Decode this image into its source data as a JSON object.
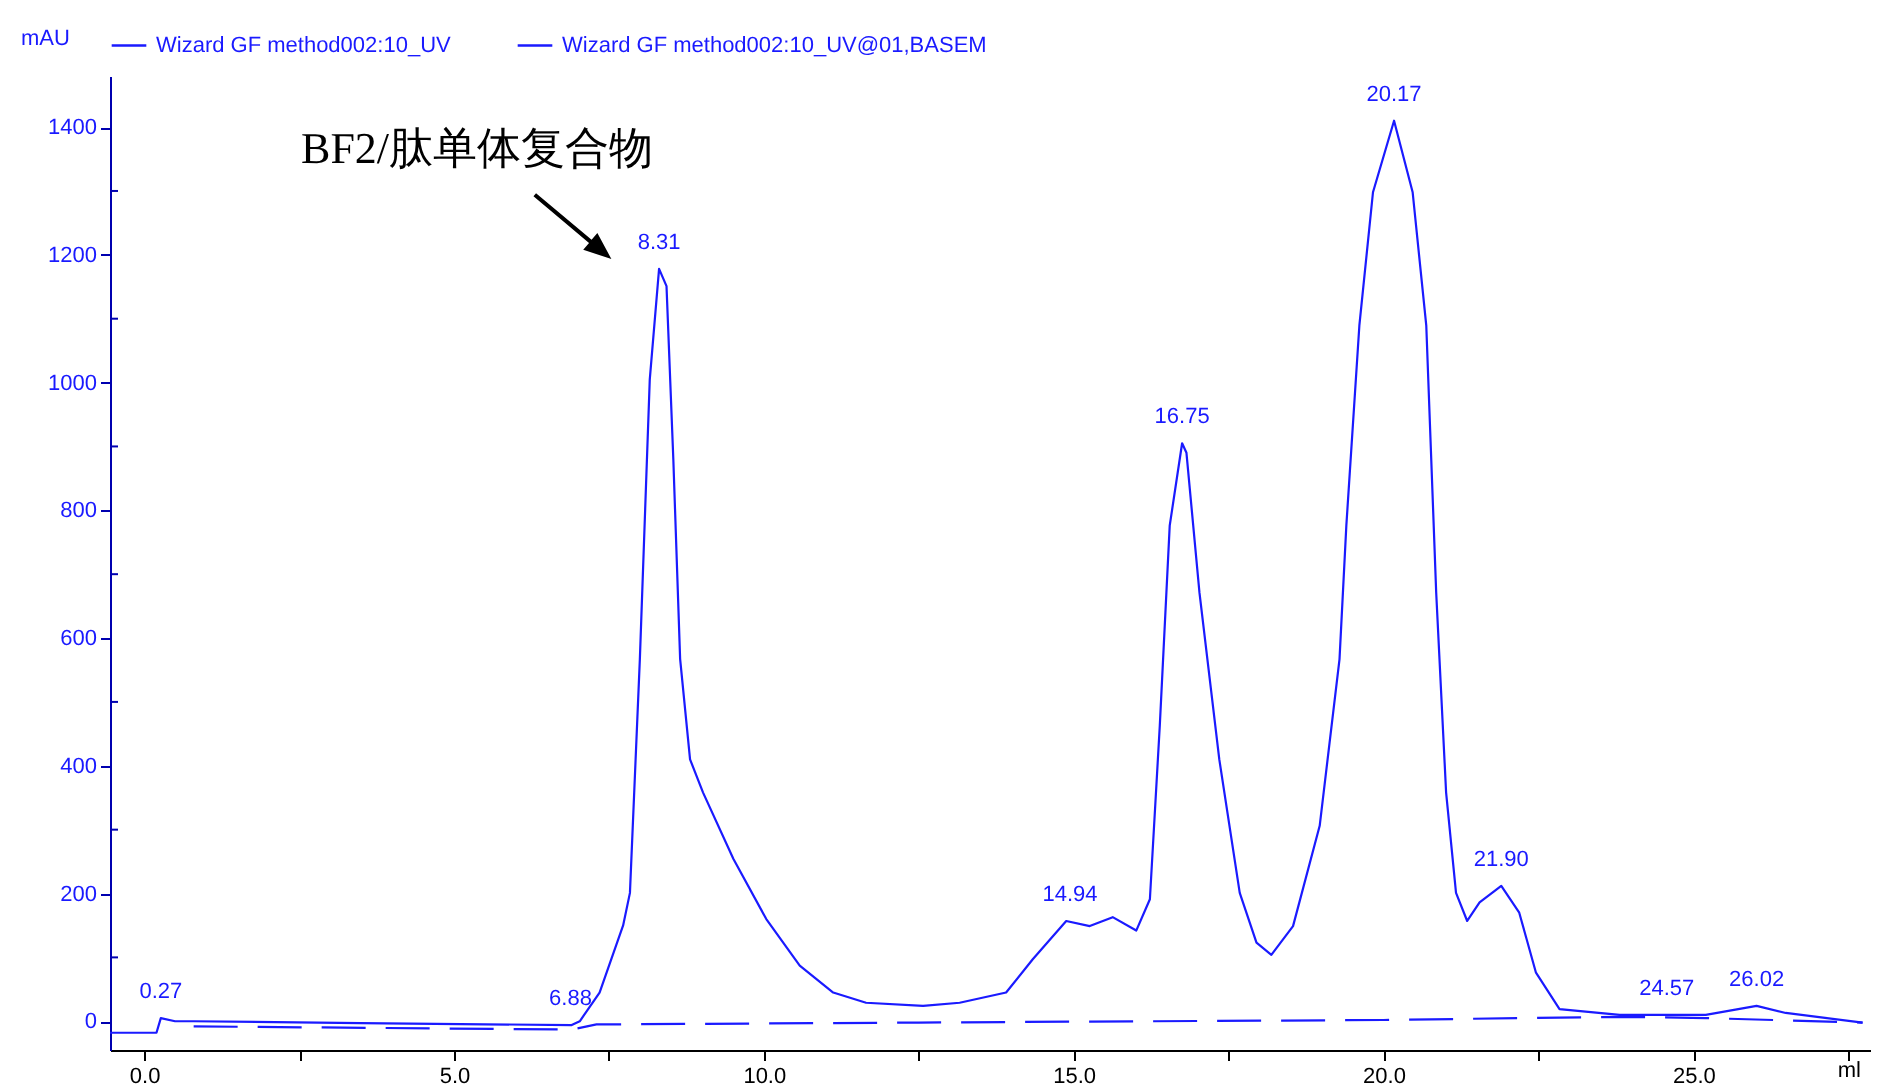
{
  "chart_data": {
    "type": "line",
    "xlabel": "ml",
    "ylabel": "mAU",
    "xlim": [
      -0.55,
      27.85
    ],
    "ylim": [
      -45,
      1480
    ],
    "xticks": [
      {
        "value": 0,
        "label": "0.0"
      },
      {
        "value": 2.5,
        "label": null
      },
      {
        "value": 5,
        "label": "5.0"
      },
      {
        "value": 7.5,
        "label": null
      },
      {
        "value": 10,
        "label": "10.0"
      },
      {
        "value": 12.5,
        "label": null
      },
      {
        "value": 15,
        "label": "15.0"
      },
      {
        "value": 17.5,
        "label": null
      },
      {
        "value": 20,
        "label": "20.0"
      },
      {
        "value": 22.5,
        "label": null
      },
      {
        "value": 25,
        "label": "25.0"
      },
      {
        "value": 27.5,
        "label": null
      }
    ],
    "yticks": [
      0,
      {
        "value": 100,
        "label": null
      },
      200,
      {
        "value": 300,
        "label": null
      },
      400,
      {
        "value": 500,
        "label": null
      },
      600,
      {
        "value": 700,
        "label": null
      },
      800,
      {
        "value": 900,
        "label": null
      },
      1000,
      {
        "value": 1100,
        "label": null
      },
      1200,
      {
        "value": 1300,
        "label": null
      },
      1400
    ],
    "legend": "top",
    "series": [
      {
        "name": "Wizard GF method002:10_UV",
        "color": "#1a1aff",
        "line_style": "solid",
        "x": [
          -0.55,
          0.2,
          0.27,
          0.5,
          0.8,
          3.5,
          6.9,
          7.03,
          7.35,
          7.73,
          7.84,
          8.0,
          8.16,
          8.31,
          8.43,
          8.54,
          8.65,
          8.81,
          9.02,
          9.51,
          10.04,
          10.58,
          11.12,
          11.65,
          12.57,
          13.16,
          13.91,
          14.34,
          14.88,
          15.26,
          15.63,
          16.01,
          16.23,
          16.39,
          16.55,
          16.75,
          16.82,
          17.03,
          17.35,
          17.68,
          17.95,
          18.19,
          18.54,
          18.97,
          19.29,
          19.4,
          19.61,
          19.83,
          20.17,
          20.47,
          20.69,
          20.85,
          21.01,
          21.17,
          21.35,
          21.55,
          21.9,
          22.19,
          22.46,
          22.84,
          23.81,
          24.57,
          25.2,
          26.02,
          26.49,
          27.73
        ],
        "values": [
          -18,
          -18,
          5,
          0,
          0,
          -3,
          -6,
          0,
          45,
          150,
          201,
          567,
          1005,
          1178,
          1151,
          880,
          567,
          410,
          358,
          254,
          160,
          87,
          45,
          29,
          24,
          29,
          45,
          97,
          157,
          149,
          163,
          142,
          191,
          463,
          776,
          905,
          890,
          671,
          410,
          201,
          123,
          104,
          149,
          306,
          567,
          776,
          1089,
          1298,
          1410,
          1298,
          1089,
          671,
          358,
          201,
          157,
          186,
          212,
          170,
          76,
          19,
          10,
          10,
          10,
          24,
          13,
          -2
        ]
      },
      {
        "name": "Wizard GF method002:10_UV@01,BASEM",
        "color": "#1a1aff",
        "line_style": "dashed",
        "x": [
          0.8,
          6.9,
          7.3,
          12.5,
          20,
          23.8,
          25.2,
          27.73
        ],
        "values": [
          -8,
          -13,
          -5,
          -2,
          2,
          7,
          5,
          -2
        ]
      }
    ],
    "annotations": [
      {
        "text": "BF2/肽单体复合物",
        "x": 8.31,
        "y": 1178
      },
      {
        "text": "0.27",
        "x": 0.27,
        "y": 5
      },
      {
        "text": "6.88",
        "x": 6.88,
        "y": -6
      },
      {
        "text": "8.31",
        "x": 8.31,
        "y": 1178
      },
      {
        "text": "14.94",
        "x": 14.94,
        "y": 157
      },
      {
        "text": "16.75",
        "x": 16.75,
        "y": 905
      },
      {
        "text": "20.17",
        "x": 20.17,
        "y": 1410
      },
      {
        "text": "21.90",
        "x": 21.9,
        "y": 212
      },
      {
        "text": "24.57",
        "x": 24.57,
        "y": 10
      },
      {
        "text": "26.02",
        "x": 26.02,
        "y": 24
      }
    ]
  }
}
